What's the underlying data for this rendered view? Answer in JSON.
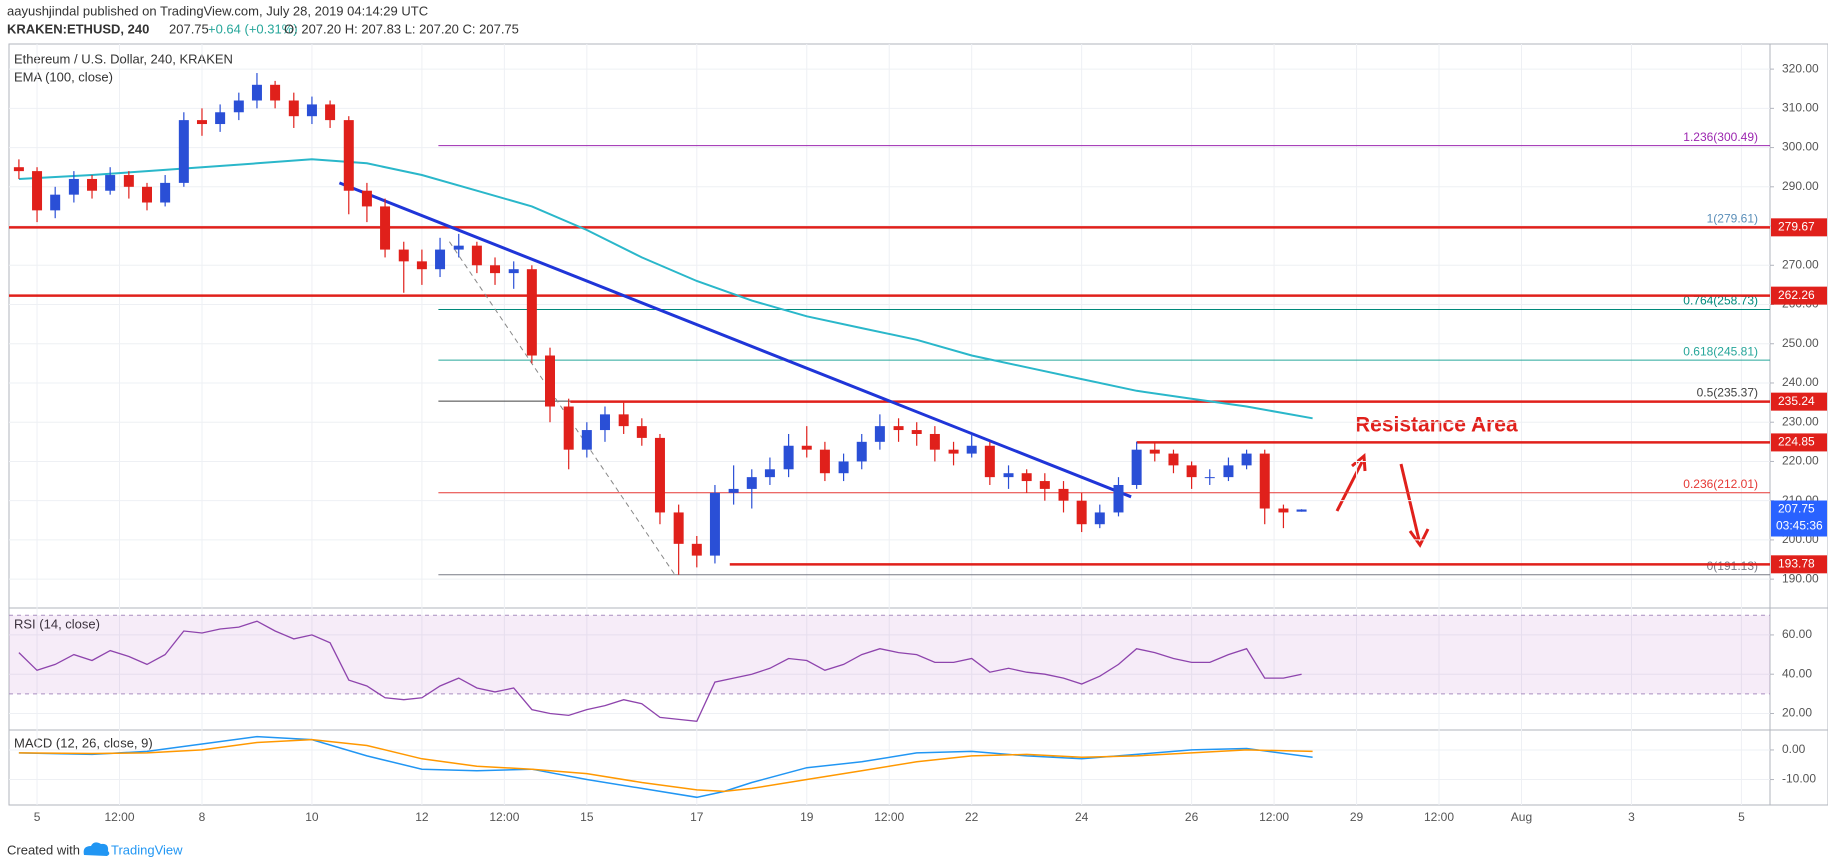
{
  "header": {
    "publisher": "aayushjindal published on TradingView.com, July 28, 2019 04:14:29 UTC",
    "symbol": "KRAKEN:ETHUSD, 240",
    "price": "207.75",
    "change": "+0.64 (+0.31%)",
    "ohlc": "O: 207.20  H: 207.83  L: 207.20  C: 207.75"
  },
  "footer": {
    "created": "Created with",
    "brand": "TradingView"
  },
  "chart_data": {
    "type": "candlestick",
    "title": "Ethereum / U.S. Dollar, 240, KRAKEN",
    "x": [
      4.67,
      5.0,
      5.33,
      5.67,
      6.0,
      6.33,
      6.67,
      7.0,
      7.33,
      7.67,
      8.0,
      8.33,
      8.67,
      9.0,
      9.33,
      9.67,
      10.0,
      10.33,
      10.67,
      11.0,
      11.33,
      11.67,
      12.0,
      12.33,
      12.67,
      13.0,
      13.33,
      13.67,
      14.0,
      14.33,
      14.67,
      15.0,
      15.33,
      15.67,
      16.0,
      16.33,
      16.67,
      17.0,
      17.33,
      17.67,
      18.0,
      18.33,
      18.67,
      19.0,
      19.33,
      19.67,
      20.0,
      20.33,
      20.67,
      21.0,
      21.33,
      21.67,
      22.0,
      22.33,
      22.67,
      23.0,
      23.33,
      23.67,
      24.0,
      24.33,
      24.67,
      25.0,
      25.33,
      25.67,
      26.0,
      26.33,
      26.67,
      27.0,
      27.33,
      27.67,
      28.0
    ],
    "open": [
      295,
      294,
      284,
      288,
      292,
      289,
      293,
      290,
      286,
      291,
      307,
      306,
      309,
      312,
      316,
      312,
      308,
      311,
      307,
      289,
      285,
      274,
      271,
      269,
      274,
      275,
      270,
      268,
      269,
      247,
      234,
      223,
      228,
      232,
      229,
      226,
      207,
      199,
      196,
      212,
      213,
      216,
      218,
      224,
      223,
      217,
      220,
      225,
      229,
      228,
      227,
      223,
      222,
      224,
      216,
      217,
      215,
      213,
      210,
      204,
      207,
      214,
      223,
      222,
      219,
      216,
      216,
      219,
      222,
      208,
      207.2
    ],
    "high": [
      297,
      295,
      290,
      294,
      293,
      295,
      294,
      291,
      293,
      309,
      310,
      311,
      314,
      319,
      317,
      314,
      313,
      312,
      308,
      291,
      287,
      276,
      274,
      277,
      278,
      276,
      272,
      271,
      270,
      249,
      236,
      230,
      234,
      235,
      231,
      227,
      209,
      201,
      214,
      219,
      218,
      221,
      227,
      229,
      225,
      222,
      227,
      232,
      231,
      230,
      229,
      225,
      227,
      225,
      219,
      218,
      217,
      215,
      212,
      209,
      216,
      225,
      225,
      223,
      220,
      218,
      221,
      223,
      223,
      209,
      207.83
    ],
    "low": [
      292,
      281,
      282,
      286,
      287,
      288,
      287,
      284,
      285,
      290,
      303,
      304,
      307,
      310,
      310,
      305,
      306,
      305,
      283,
      281,
      272,
      263,
      265,
      267,
      272,
      268,
      265,
      264,
      245,
      230,
      218,
      221,
      225,
      227,
      224,
      204,
      191.13,
      193,
      194,
      209,
      208,
      214,
      216,
      221,
      215,
      215,
      218,
      223,
      225,
      224,
      220,
      219,
      221,
      214,
      213,
      212,
      210,
      207,
      202,
      203,
      206,
      213,
      220,
      217,
      213,
      214,
      215,
      218,
      204,
      203,
      207.2
    ],
    "close": [
      294,
      284,
      288,
      292,
      289,
      293,
      290,
      286,
      291,
      307,
      306,
      309,
      312,
      316,
      312,
      308,
      311,
      307,
      289,
      285,
      274,
      271,
      269,
      274,
      275,
      270,
      268,
      269,
      247,
      234,
      223,
      228,
      232,
      229,
      226,
      207,
      199,
      196,
      212,
      213,
      216,
      218,
      224,
      223,
      217,
      220,
      225,
      229,
      228,
      227,
      223,
      222,
      224,
      216,
      217,
      215,
      213,
      210,
      204,
      207,
      214,
      223,
      222,
      219,
      216,
      216,
      219,
      222,
      208,
      207,
      207.75
    ],
    "up_color": "#2a4fd6",
    "down_color": "#e0201b",
    "xlim": [
      4.49,
      36.52
    ],
    "xticks": [
      5,
      {
        "value": 6.5,
        "label": "12:00"
      },
      8,
      10,
      12,
      {
        "value": 13.5,
        "label": "12:00"
      },
      15,
      17,
      19,
      {
        "value": 20.5,
        "label": "12:00"
      },
      22,
      24,
      26,
      {
        "value": 27.5,
        "label": "12:00"
      },
      29,
      {
        "value": 30.5,
        "label": "12:00"
      },
      {
        "value": 32,
        "label": "Aug"
      },
      {
        "value": 34,
        "label": "3"
      },
      {
        "value": 36,
        "label": "5"
      }
    ],
    "ylim": [
      182.9,
      326.4
    ],
    "yticks": [
      {
        "value": 190,
        "label": "190.00"
      },
      {
        "value": 200,
        "label": "200.00"
      },
      {
        "value": 210,
        "label": "210.00"
      },
      {
        "value": 220,
        "label": "220.00"
      },
      {
        "value": 230,
        "label": "230.00"
      },
      {
        "value": 240,
        "label": "240.00"
      },
      {
        "value": 250,
        "label": "250.00"
      },
      {
        "value": 260,
        "label": "260.00"
      },
      {
        "value": 270,
        "label": "270.00"
      },
      {
        "value": 280,
        "label": "280.00"
      },
      {
        "value": 290,
        "label": "290.00"
      },
      {
        "value": 300,
        "label": "300.00"
      },
      {
        "value": 310,
        "label": "310.00"
      },
      {
        "value": 320,
        "label": "320.00"
      }
    ],
    "grid": true,
    "ema": {
      "name": "EMA (100, close)",
      "color": "#2ab7ca",
      "x": [
        4.67,
        6,
        7,
        8,
        9,
        10,
        11,
        12,
        13,
        14,
        15,
        16,
        17,
        18,
        19,
        20,
        21,
        22,
        23,
        24,
        25,
        26,
        27,
        28.2
      ],
      "values": [
        292,
        293,
        294,
        295,
        296,
        297,
        296,
        293,
        289,
        285,
        279,
        272,
        266,
        261,
        257,
        254,
        251,
        247,
        244,
        241,
        238,
        236,
        234,
        231
      ]
    },
    "levels": [
      {
        "value": 279.67,
        "label": "279.67"
      },
      {
        "value": 262.26,
        "label": "262.26"
      },
      {
        "value": 235.24,
        "label": "235.24",
        "start": 14.7
      },
      {
        "value": 224.85,
        "label": "224.85",
        "start": 25.0
      },
      {
        "value": 193.78,
        "label": "193.78",
        "start": 17.6
      }
    ],
    "level_color": "#e0201b",
    "fib": {
      "start": 12.3,
      "levels": [
        {
          "label": "1.236(300.49)",
          "value": 300.49,
          "color": "#9c27b0"
        },
        {
          "label": "1(279.61)",
          "value": 279.61,
          "color": "#5b8fb9"
        },
        {
          "label": "0.764(258.73)",
          "value": 258.73,
          "color": "#00897b"
        },
        {
          "label": "0.618(245.81)",
          "value": 245.81,
          "color": "#26a69a"
        },
        {
          "label": "0.5(235.37)",
          "value": 235.37,
          "color": "#424242"
        },
        {
          "label": "0.236(212.01)",
          "value": 212.01,
          "color": "#e53935"
        },
        {
          "label": "0(191.13)",
          "value": 191.13,
          "color": "#787b86"
        }
      ]
    },
    "trendline": {
      "color": "#1f35d8",
      "x": [
        10.5,
        24.9
      ],
      "values": [
        291,
        211
      ]
    },
    "fib_leg": {
      "color": "#888888",
      "x": [
        12.5,
        16.6
      ],
      "values": [
        276,
        191.13
      ]
    },
    "annotation": {
      "text": "Resistance Area",
      "color": "#e0201b"
    },
    "last": {
      "value": 207.75,
      "label": "207.75",
      "countdown": "03:45:36",
      "color": "#2962ff"
    },
    "rsi": {
      "name": "RSI (14, close)",
      "color": "#8e44ad",
      "ylim": [
        12.1,
        73.2
      ],
      "yticks": [
        {
          "value": 20,
          "label": "20.00"
        },
        {
          "value": 40,
          "label": "40.00"
        },
        {
          "value": 60,
          "label": "60.00"
        }
      ],
      "band": [
        30,
        70
      ],
      "values": [
        51,
        42,
        45,
        50,
        47,
        52,
        49,
        45,
        50,
        62,
        61,
        63,
        64,
        67,
        62,
        58,
        60,
        56,
        37,
        34,
        28,
        27,
        28,
        34,
        38,
        33,
        31,
        33,
        22,
        20,
        19,
        22,
        24,
        27,
        25,
        18,
        17,
        16,
        36,
        38,
        40,
        43,
        48,
        47,
        42,
        45,
        50,
        53,
        51,
        50,
        46,
        46,
        48,
        41,
        43,
        41,
        40,
        38,
        35,
        39,
        45,
        53,
        51,
        48,
        46,
        46,
        50,
        53,
        38,
        38,
        40
      ]
    },
    "macd": {
      "name": "MACD (12, 26, close, 9)",
      "ylim": [
        -18.6,
        6.4
      ],
      "yticks": [
        {
          "value": -10,
          "label": "-10.00"
        },
        {
          "value": 0,
          "label": "0.00"
        }
      ],
      "series": [
        {
          "color": "#2196f3",
          "x": [
            4.67,
            6,
            7,
            8,
            9,
            10,
            11,
            12,
            13,
            14,
            15,
            16,
            17,
            17.5,
            18,
            19,
            20,
            21,
            22,
            23,
            24,
            25,
            26,
            27,
            28.2
          ],
          "values": [
            -1,
            -1.5,
            -0.5,
            2,
            4.5,
            3.5,
            -2,
            -6.5,
            -7,
            -6.5,
            -10,
            -13,
            -16,
            -14,
            -11,
            -6,
            -4,
            -1,
            -0.5,
            -2,
            -3,
            -1.5,
            0,
            0.5,
            -2.5
          ]
        },
        {
          "color": "#ff9800",
          "x": [
            4.67,
            6,
            7,
            8,
            9,
            10,
            11,
            12,
            13,
            14,
            15,
            16,
            17,
            17.5,
            18,
            19,
            20,
            21,
            22,
            23,
            24,
            25,
            26,
            27,
            28.2
          ],
          "values": [
            -1,
            -1.2,
            -1,
            0,
            2.5,
            3.5,
            1.5,
            -3,
            -5.5,
            -6.5,
            -8,
            -11,
            -13.5,
            -14,
            -13,
            -10,
            -7,
            -4,
            -2,
            -1.5,
            -2.5,
            -2,
            -1,
            0,
            -0.5
          ]
        }
      ]
    }
  }
}
